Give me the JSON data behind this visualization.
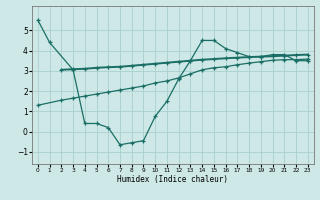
{
  "xlabel": "Humidex (Indice chaleur)",
  "background_color": "#cde8e6",
  "grid_color": "#aacfcc",
  "line_color": "#1a6e65",
  "xlim": [
    -0.5,
    23.5
  ],
  "ylim": [
    -1.6,
    6.2
  ],
  "yticks": [
    -1,
    0,
    1,
    2,
    3,
    4,
    5
  ],
  "xticks": [
    0,
    1,
    2,
    3,
    4,
    5,
    6,
    7,
    8,
    9,
    10,
    11,
    12,
    13,
    14,
    15,
    16,
    17,
    18,
    19,
    20,
    21,
    22,
    23
  ],
  "series1_x": [
    0,
    1,
    3,
    4,
    5,
    6,
    7,
    8,
    9,
    10,
    11,
    12,
    13,
    14,
    15,
    16,
    17,
    18,
    19,
    20,
    21,
    22,
    23
  ],
  "series1_y": [
    5.5,
    4.4,
    3.05,
    0.4,
    0.4,
    0.2,
    -0.65,
    -0.55,
    -0.45,
    0.75,
    1.5,
    2.6,
    3.5,
    4.5,
    4.5,
    4.1,
    3.9,
    3.7,
    3.7,
    3.8,
    3.8,
    3.5,
    3.5
  ],
  "series2_x": [
    2,
    3,
    4,
    5,
    6,
    7,
    8,
    9,
    10,
    11,
    12,
    13,
    14,
    15,
    16,
    17,
    18,
    19,
    20,
    21,
    22,
    23
  ],
  "series2_y": [
    3.05,
    3.08,
    3.1,
    3.15,
    3.18,
    3.2,
    3.25,
    3.3,
    3.35,
    3.4,
    3.45,
    3.5,
    3.55,
    3.58,
    3.62,
    3.65,
    3.68,
    3.7,
    3.72,
    3.75,
    3.78,
    3.8
  ],
  "series3_x": [
    0,
    2,
    3,
    4,
    5,
    6,
    7,
    8,
    9,
    10,
    11,
    12,
    13,
    14,
    15,
    16,
    17,
    18,
    19,
    20,
    21,
    22,
    23
  ],
  "series3_y": [
    1.3,
    1.55,
    1.65,
    1.75,
    1.85,
    1.95,
    2.05,
    2.15,
    2.25,
    2.4,
    2.5,
    2.65,
    2.85,
    3.05,
    3.15,
    3.2,
    3.3,
    3.38,
    3.45,
    3.52,
    3.55,
    3.55,
    3.58
  ]
}
